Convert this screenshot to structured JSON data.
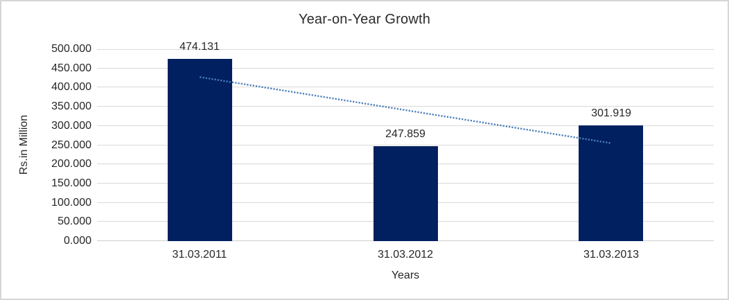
{
  "window": {
    "background_color": "#ffffff",
    "border_color": "#d5d5d5"
  },
  "chart_data": {
    "type": "bar",
    "title": "Year-on-Year Growth",
    "xlabel": "Years",
    "ylabel": "Rs.in Million",
    "categories": [
      "31.03.2011",
      "31.03.2012",
      "31.03.2013"
    ],
    "values": [
      474.131,
      247.859,
      301.919
    ],
    "data_labels": [
      "474.131",
      "247.859",
      "301.919"
    ],
    "ylim": [
      0,
      500
    ],
    "ytick_step": 50,
    "ytick_labels": [
      "0.000",
      "50.000",
      "100.000",
      "150.000",
      "200.000",
      "250.000",
      "300.000",
      "350.000",
      "400.000",
      "450.000",
      "500.000"
    ],
    "grid": true,
    "legend": "none",
    "colors": {
      "bar": "#002060",
      "gridline": "#d9d9d9",
      "trendline": "#4a7ebb",
      "text": "#262626"
    },
    "trendline": {
      "type": "linear",
      "style": "dotted",
      "start_value": 427.4,
      "end_value": 255.2
    }
  }
}
